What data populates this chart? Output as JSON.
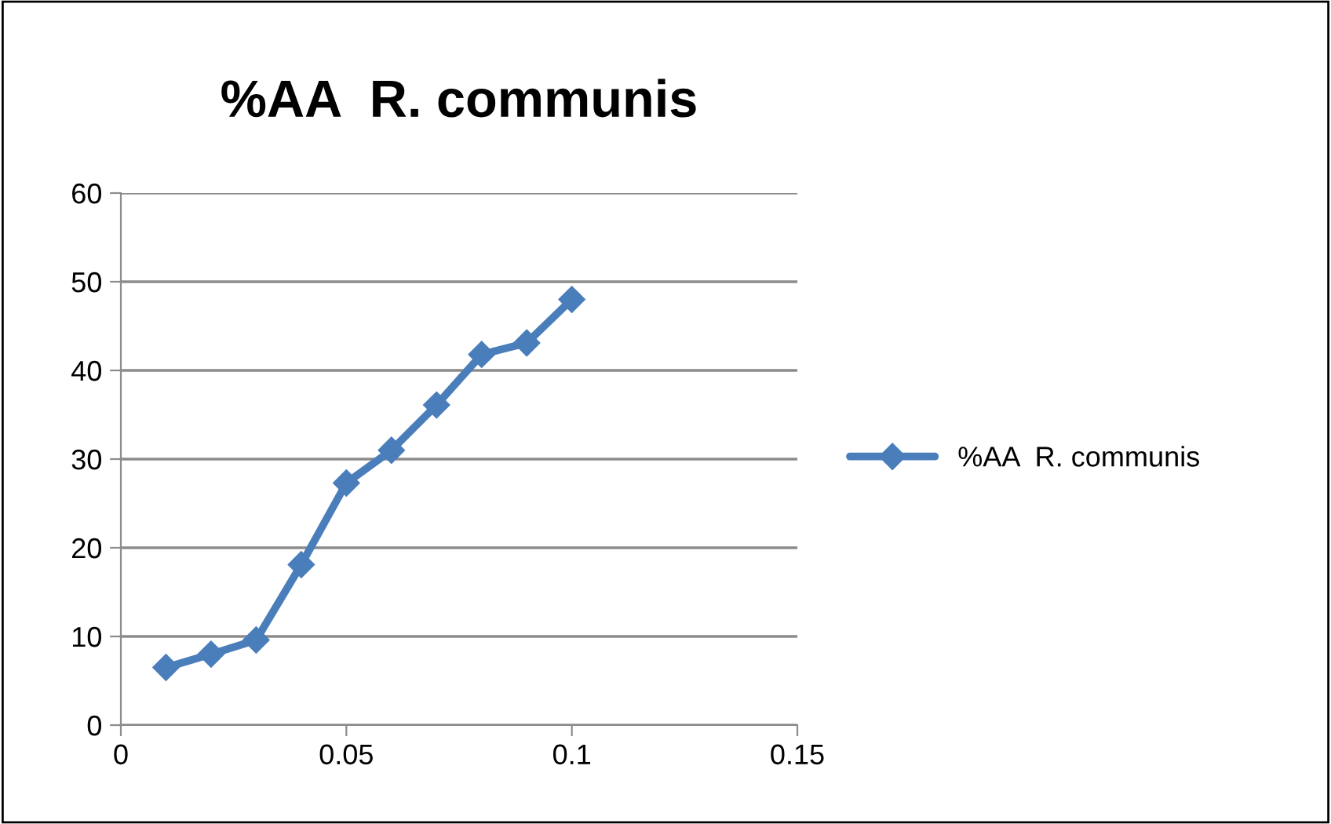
{
  "chart_data": {
    "type": "line",
    "title": "%AA  R. communis",
    "x": [
      0.01,
      0.02,
      0.03,
      0.04,
      0.05,
      0.06,
      0.07,
      0.08,
      0.09,
      0.1
    ],
    "series": [
      {
        "name": "%AA  R. communis",
        "color": "#4a7ebb",
        "values": [
          6.5,
          8.0,
          9.6,
          18.1,
          27.3,
          31.0,
          36.1,
          41.8,
          43.1,
          48.0
        ]
      }
    ],
    "xlim": [
      0,
      0.15
    ],
    "xticks": [
      0,
      0.05,
      0.1,
      0.15
    ],
    "ylim": [
      0,
      60
    ],
    "yticks": [
      0,
      10,
      20,
      30,
      40,
      50,
      60
    ],
    "grid": "y",
    "legend": "right",
    "marker": "diamond",
    "line_style": "solid"
  }
}
